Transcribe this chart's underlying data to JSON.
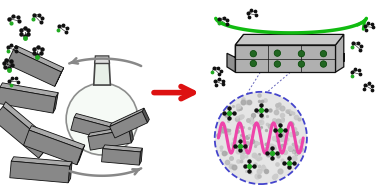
{
  "bg_color": "#ffffff",
  "arrow_red_color": "#dd1111",
  "arrow_green_color": "#11bb11",
  "flask_edge_color": "#444444",
  "crystal_face_color": "#888888",
  "crystal_top_color": "#aaaaaa",
  "crystal_side_color": "#555555",
  "crystal_edge_color": "#111111",
  "molecule_dark_color": "#111111",
  "molecule_green_color": "#22aa22",
  "pore_circle_color": "#4444cc",
  "wave_color": "#ee44aa",
  "rotation_arrow_color": "#888888",
  "zeo_face_color": "#aaaaaa",
  "zeo_top_color": "#cccccc",
  "zeo_side_color": "#888888",
  "zeo_edge_color": "#111111",
  "zeo_dot_color": "#226622",
  "sphere_bg_color": "#dddddd",
  "fig_width": 3.78,
  "fig_height": 1.89
}
